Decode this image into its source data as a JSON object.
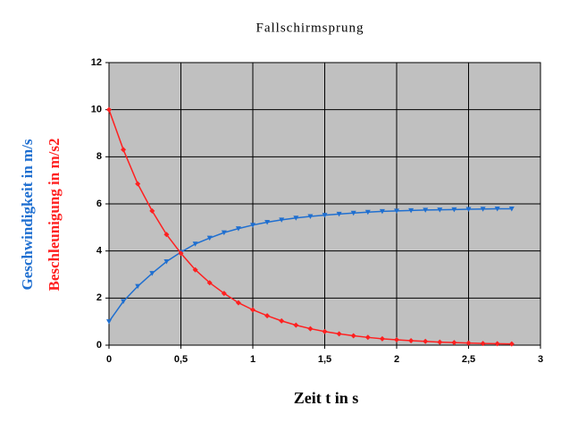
{
  "chart_data": {
    "type": "line",
    "title": "Fallschirmsprung",
    "xlabel": "Zeit t in s",
    "x": [
      0,
      0.1,
      0.2,
      0.3,
      0.4,
      0.5,
      0.6,
      0.7,
      0.8,
      0.9,
      1.0,
      1.1,
      1.2,
      1.3,
      1.4,
      1.5,
      1.6,
      1.7,
      1.8,
      1.9,
      2.0,
      2.1,
      2.2,
      2.3,
      2.4,
      2.5,
      2.6,
      2.7,
      2.8
    ],
    "series": [
      {
        "name": "Geschwindigkeit in m/s",
        "color": "#1f6fd0",
        "marker": "triangle-down",
        "values": [
          1.0,
          1.86,
          2.5,
          3.05,
          3.55,
          3.95,
          4.3,
          4.55,
          4.78,
          4.95,
          5.1,
          5.22,
          5.32,
          5.4,
          5.47,
          5.52,
          5.57,
          5.61,
          5.65,
          5.68,
          5.7,
          5.72,
          5.74,
          5.75,
          5.76,
          5.77,
          5.78,
          5.79,
          5.79
        ]
      },
      {
        "name": "Beschleunigung in m/s2",
        "color": "#ff2020",
        "marker": "diamond",
        "values": [
          10,
          8.3,
          6.85,
          5.7,
          4.7,
          3.9,
          3.2,
          2.65,
          2.2,
          1.8,
          1.5,
          1.25,
          1.03,
          0.85,
          0.7,
          0.58,
          0.48,
          0.4,
          0.33,
          0.27,
          0.23,
          0.19,
          0.16,
          0.13,
          0.11,
          0.09,
          0.07,
          0.06,
          0.05
        ]
      }
    ],
    "xlim": [
      0,
      3
    ],
    "xticks": [
      0,
      {
        "value": 0.5,
        "label": "0,5"
      },
      1,
      {
        "value": 1.5,
        "label": "1,5"
      },
      2,
      {
        "value": 2.5,
        "label": "2,5"
      },
      3
    ],
    "ylim": [
      0,
      12
    ],
    "yticks": [
      0,
      2,
      4,
      6,
      8,
      10,
      12
    ],
    "grid": true
  }
}
